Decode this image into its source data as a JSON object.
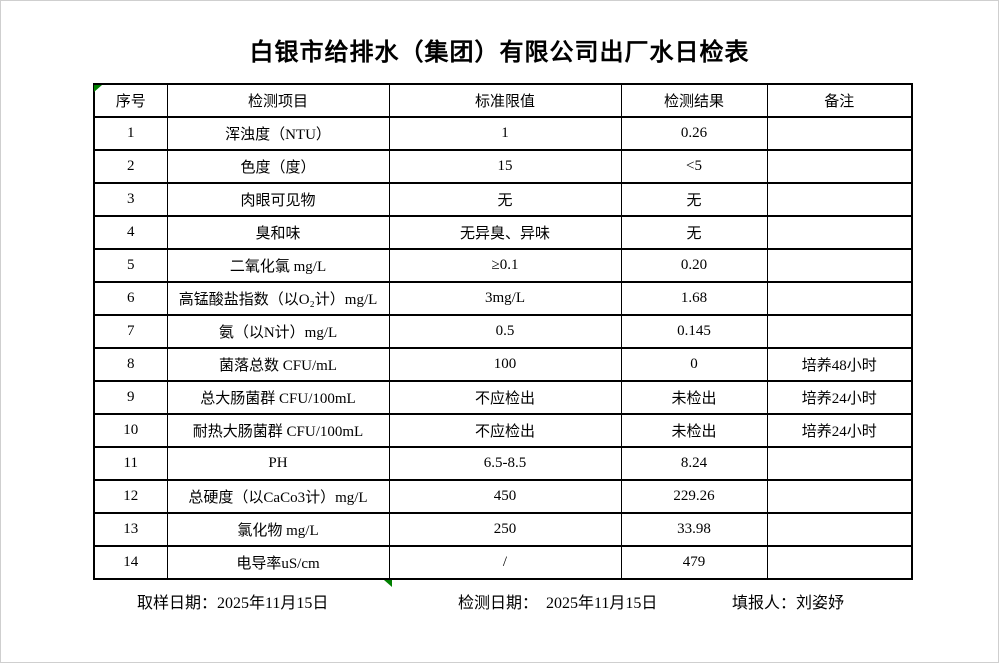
{
  "title": "白银市给排水（集团）有限公司出厂水日检表",
  "table": {
    "headers": [
      "序号",
      "检测项目",
      "标准限值",
      "检测结果",
      "备注"
    ],
    "rows": [
      {
        "no": "1",
        "item": "浑浊度（NTU）",
        "limit": "1",
        "result": "0.26",
        "remark": ""
      },
      {
        "no": "2",
        "item": "色度（度）",
        "limit": "15",
        "result": "<5",
        "remark": ""
      },
      {
        "no": "3",
        "item": "肉眼可见物",
        "limit": "无",
        "result": "无",
        "remark": ""
      },
      {
        "no": "4",
        "item": "臭和味",
        "limit": "无异臭、异味",
        "result": "无",
        "remark": ""
      },
      {
        "no": "5",
        "item": "二氧化氯 mg/L",
        "limit": "≥0.1",
        "result": "0.20",
        "remark": ""
      },
      {
        "no": "6",
        "item": "高锰酸盐指数（以O₂计）mg/L",
        "limit": "3mg/L",
        "result": "1.68",
        "remark": ""
      },
      {
        "no": "7",
        "item": "氨（以N计）mg/L",
        "limit": "0.5",
        "result": "0.145",
        "remark": ""
      },
      {
        "no": "8",
        "item": "菌落总数 CFU/mL",
        "limit": "100",
        "result": "0",
        "remark": "培养48小时"
      },
      {
        "no": "9",
        "item": "总大肠菌群 CFU/100mL",
        "limit": "不应检出",
        "result": "未检出",
        "remark": "培养24小时"
      },
      {
        "no": "10",
        "item": "耐热大肠菌群 CFU/100mL",
        "limit": "不应检出",
        "result": "未检出",
        "remark": "培养24小时"
      },
      {
        "no": "11",
        "item": "PH",
        "limit": "6.5-8.5",
        "result": "8.24",
        "remark": ""
      },
      {
        "no": "12",
        "item": "总硬度（以CaCo3计）mg/L",
        "limit": "450",
        "result": "229.26",
        "remark": ""
      },
      {
        "no": "13",
        "item": "氯化物 mg/L",
        "limit": "250",
        "result": "33.98",
        "remark": ""
      },
      {
        "no": "14",
        "item": "电导率uS/cm",
        "limit": "/",
        "result": "479",
        "remark": ""
      }
    ]
  },
  "footer": {
    "sampling": "取样日期：2025年11月15日",
    "testing": "检测日期：　2025年11月15日",
    "reporter": "填报人：刘姿妤"
  },
  "icons": {
    "corner_indicator": "green-corner-triangle",
    "bottom_marker": "green-bottom-triangle"
  },
  "colors": {
    "marker_green": "#008000",
    "border": "#000000",
    "background": "#ffffff"
  }
}
